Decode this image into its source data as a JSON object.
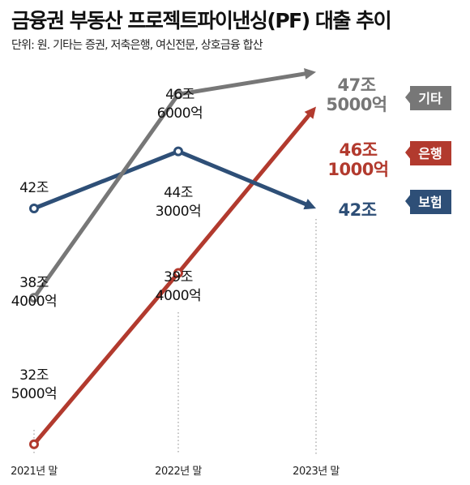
{
  "title": "금융권 부동산 프로젝트파이낸싱(PF) 대출 추이",
  "unit_note": "단위: 원. 기타는 증권, 저축은행, 여신전문, 상호금융 합산",
  "chart_data": {
    "type": "line",
    "categories": [
      "2021년 말",
      "2022년 말",
      "2023년 말"
    ],
    "unit": "억원",
    "ylim": [
      300000,
      480000
    ],
    "series": [
      {
        "name": "기타",
        "color": "#777777",
        "values": [
          384000,
          466000,
          475000
        ],
        "labels": [
          [
            "38조",
            "4000억"
          ],
          [
            "46조",
            "6000억"
          ],
          [
            "47조",
            "5000억"
          ]
        ]
      },
      {
        "name": "은행",
        "color": "#b23a2e",
        "values": [
          325000,
          394000,
          461000
        ],
        "labels": [
          [
            "32조",
            "5000억"
          ],
          [
            "39조",
            "4000억"
          ],
          [
            "46조",
            "1000억"
          ]
        ]
      },
      {
        "name": "보험",
        "color": "#2e4f77",
        "values": [
          420000,
          443000,
          420000
        ],
        "labels": [
          [
            "42조"
          ],
          [
            "44조",
            "3000억"
          ],
          [
            "42조"
          ]
        ]
      }
    ]
  }
}
